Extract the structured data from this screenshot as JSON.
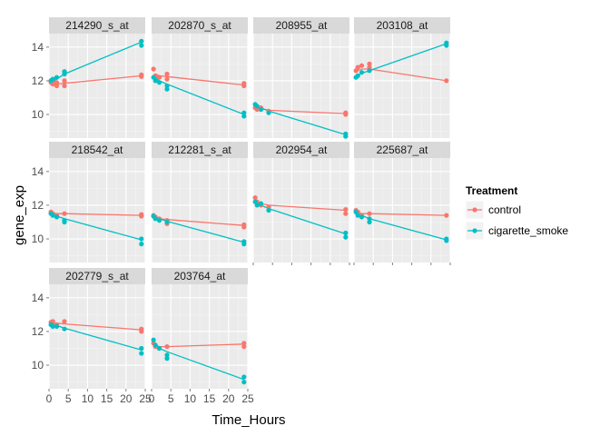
{
  "chart_data": {
    "type": "line",
    "facet_type": "small_multiples",
    "xlabel": "Time_Hours",
    "ylabel": "gene_exp",
    "xlim": [
      0,
      25
    ],
    "ylim": [
      8.6,
      14.8
    ],
    "x_ticks": [
      0,
      5,
      10,
      15,
      20,
      25
    ],
    "y_ticks": [
      10,
      12,
      14
    ],
    "grid": true,
    "legend": {
      "title": "Treatment",
      "position": "right",
      "entries": [
        {
          "name": "control",
          "color": "#F8766D"
        },
        {
          "name": "cigarette_smoke",
          "color": "#00BFC4"
        }
      ]
    },
    "panels": [
      {
        "title": "214290_s_at",
        "lines": {
          "control": [
            [
              1,
              11.9
            ],
            [
              2,
              11.8
            ],
            [
              4,
              11.85
            ],
            [
              24,
              12.3
            ]
          ],
          "cigarette_smoke": [
            [
              1,
              11.95
            ],
            [
              2,
              12.1
            ],
            [
              4,
              12.4
            ],
            [
              24,
              14.3
            ]
          ]
        },
        "points": {
          "control": [
            [
              0.5,
              11.9
            ],
            [
              0.5,
              12.0
            ],
            [
              1,
              11.8
            ],
            [
              1,
              12.0
            ],
            [
              2,
              11.7
            ],
            [
              2,
              11.9
            ],
            [
              4,
              11.7
            ],
            [
              4,
              12.0
            ],
            [
              24,
              12.25
            ],
            [
              24,
              12.35
            ]
          ],
          "cigarette_smoke": [
            [
              0.5,
              12.0
            ],
            [
              1,
              12.1
            ],
            [
              2,
              12.2
            ],
            [
              4,
              12.4
            ],
            [
              4,
              12.55
            ],
            [
              24,
              14.1
            ],
            [
              24,
              14.35
            ]
          ]
        }
      },
      {
        "title": "202870_s_at",
        "lines": {
          "control": [
            [
              1,
              12.4
            ],
            [
              2,
              12.3
            ],
            [
              4,
              12.25
            ],
            [
              24,
              11.75
            ]
          ],
          "cigarette_smoke": [
            [
              1,
              12.2
            ],
            [
              2,
              12.0
            ],
            [
              4,
              11.8
            ],
            [
              24,
              10.0
            ]
          ]
        },
        "points": {
          "control": [
            [
              0.5,
              12.7
            ],
            [
              1,
              12.3
            ],
            [
              2,
              12.2
            ],
            [
              4,
              12.1
            ],
            [
              4,
              12.4
            ],
            [
              24,
              11.7
            ],
            [
              24,
              11.85
            ]
          ],
          "cigarette_smoke": [
            [
              0.5,
              12.2
            ],
            [
              1,
              12.0
            ],
            [
              2,
              11.9
            ],
            [
              4,
              11.5
            ],
            [
              4,
              11.7
            ],
            [
              24,
              9.9
            ],
            [
              24,
              10.1
            ]
          ]
        }
      },
      {
        "title": "208955_at",
        "lines": {
          "control": [
            [
              1,
              10.4
            ],
            [
              2,
              10.35
            ],
            [
              4,
              10.25
            ],
            [
              24,
              10.05
            ]
          ],
          "cigarette_smoke": [
            [
              1,
              10.5
            ],
            [
              2,
              10.4
            ],
            [
              4,
              10.2
            ],
            [
              24,
              8.8
            ]
          ]
        },
        "points": {
          "control": [
            [
              0.5,
              10.4
            ],
            [
              1,
              10.3
            ],
            [
              2,
              10.4
            ],
            [
              4,
              10.2
            ],
            [
              24,
              10.0
            ],
            [
              24,
              10.1
            ]
          ],
          "cigarette_smoke": [
            [
              0.5,
              10.6
            ],
            [
              1,
              10.5
            ],
            [
              2,
              10.3
            ],
            [
              4,
              10.1
            ],
            [
              24,
              8.7
            ],
            [
              24,
              8.85
            ]
          ]
        }
      },
      {
        "title": "203108_at",
        "lines": {
          "control": [
            [
              1,
              12.6
            ],
            [
              2,
              12.7
            ],
            [
              4,
              12.7
            ],
            [
              24,
              12.0
            ]
          ],
          "cigarette_smoke": [
            [
              1,
              12.3
            ],
            [
              2,
              12.45
            ],
            [
              4,
              12.6
            ],
            [
              24,
              14.2
            ]
          ]
        },
        "points": {
          "control": [
            [
              0.5,
              12.6
            ],
            [
              1,
              12.8
            ],
            [
              2,
              12.9
            ],
            [
              4,
              12.8
            ],
            [
              4,
              13.0
            ],
            [
              24,
              12.0
            ]
          ],
          "cigarette_smoke": [
            [
              0.5,
              12.2
            ],
            [
              1,
              12.3
            ],
            [
              2,
              12.5
            ],
            [
              4,
              12.6
            ],
            [
              24,
              14.1
            ],
            [
              24,
              14.25
            ]
          ]
        }
      },
      {
        "title": "218542_at",
        "lines": {
          "control": [
            [
              1,
              11.55
            ],
            [
              2,
              11.5
            ],
            [
              4,
              11.5
            ],
            [
              24,
              11.4
            ]
          ],
          "cigarette_smoke": [
            [
              1,
              11.5
            ],
            [
              2,
              11.35
            ],
            [
              4,
              11.2
            ],
            [
              24,
              9.95
            ]
          ]
        },
        "points": {
          "control": [
            [
              0.5,
              11.6
            ],
            [
              1,
              11.5
            ],
            [
              2,
              11.4
            ],
            [
              4,
              11.5
            ],
            [
              24,
              11.35
            ],
            [
              24,
              11.45
            ]
          ],
          "cigarette_smoke": [
            [
              0.5,
              11.5
            ],
            [
              1,
              11.4
            ],
            [
              2,
              11.3
            ],
            [
              4,
              11.1
            ],
            [
              4,
              11.0
            ],
            [
              24,
              9.7
            ],
            [
              24,
              10.0
            ]
          ]
        }
      },
      {
        "title": "212281_s_at",
        "lines": {
          "control": [
            [
              1,
              11.3
            ],
            [
              2,
              11.2
            ],
            [
              4,
              11.15
            ],
            [
              24,
              10.8
            ]
          ],
          "cigarette_smoke": [
            [
              1,
              11.3
            ],
            [
              2,
              11.2
            ],
            [
              4,
              11.05
            ],
            [
              24,
              9.8
            ]
          ]
        },
        "points": {
          "control": [
            [
              0.5,
              11.4
            ],
            [
              1,
              11.3
            ],
            [
              2,
              11.2
            ],
            [
              4,
              11.1
            ],
            [
              4,
              10.9
            ],
            [
              24,
              10.7
            ],
            [
              24,
              10.85
            ]
          ],
          "cigarette_smoke": [
            [
              0.5,
              11.35
            ],
            [
              1,
              11.2
            ],
            [
              2,
              11.1
            ],
            [
              4,
              11.0
            ],
            [
              24,
              9.7
            ],
            [
              24,
              9.85
            ]
          ]
        }
      },
      {
        "title": "202954_at",
        "lines": {
          "control": [
            [
              1,
              12.2
            ],
            [
              2,
              12.1
            ],
            [
              4,
              12.0
            ],
            [
              24,
              11.7
            ]
          ],
          "cigarette_smoke": [
            [
              1,
              12.1
            ],
            [
              2,
              12.0
            ],
            [
              4,
              11.8
            ],
            [
              24,
              10.3
            ]
          ]
        },
        "points": {
          "control": [
            [
              0.5,
              12.45
            ],
            [
              1,
              12.2
            ],
            [
              2,
              12.0
            ],
            [
              4,
              11.9
            ],
            [
              24,
              11.5
            ],
            [
              24,
              11.75
            ]
          ],
          "cigarette_smoke": [
            [
              0.5,
              12.2
            ],
            [
              1,
              12.0
            ],
            [
              2,
              12.1
            ],
            [
              4,
              11.7
            ],
            [
              24,
              10.1
            ],
            [
              24,
              10.35
            ]
          ]
        }
      },
      {
        "title": "225687_at",
        "lines": {
          "control": [
            [
              1,
              11.6
            ],
            [
              2,
              11.5
            ],
            [
              4,
              11.5
            ],
            [
              24,
              11.4
            ]
          ],
          "cigarette_smoke": [
            [
              1,
              11.5
            ],
            [
              2,
              11.4
            ],
            [
              4,
              11.2
            ],
            [
              24,
              9.95
            ]
          ]
        },
        "points": {
          "control": [
            [
              0.5,
              11.7
            ],
            [
              1,
              11.6
            ],
            [
              2,
              11.4
            ],
            [
              4,
              11.5
            ],
            [
              24,
              11.4
            ]
          ],
          "cigarette_smoke": [
            [
              0.5,
              11.6
            ],
            [
              1,
              11.4
            ],
            [
              2,
              11.3
            ],
            [
              4,
              11.0
            ],
            [
              4,
              11.2
            ],
            [
              24,
              9.9
            ],
            [
              24,
              10.0
            ]
          ]
        }
      },
      {
        "title": "202779_s_at",
        "lines": {
          "control": [
            [
              1,
              12.5
            ],
            [
              2,
              12.5
            ],
            [
              4,
              12.45
            ],
            [
              24,
              12.1
            ]
          ],
          "cigarette_smoke": [
            [
              1,
              12.45
            ],
            [
              2,
              12.35
            ],
            [
              4,
              12.2
            ],
            [
              24,
              10.9
            ]
          ]
        },
        "points": {
          "control": [
            [
              0.5,
              12.55
            ],
            [
              1,
              12.6
            ],
            [
              2,
              12.4
            ],
            [
              4,
              12.6
            ],
            [
              24,
              12.0
            ],
            [
              24,
              12.15
            ]
          ],
          "cigarette_smoke": [
            [
              0.5,
              12.4
            ],
            [
              1,
              12.3
            ],
            [
              2,
              12.3
            ],
            [
              4,
              12.15
            ],
            [
              24,
              10.7
            ],
            [
              24,
              11.0
            ]
          ]
        }
      },
      {
        "title": "203764_at",
        "lines": {
          "control": [
            [
              1,
              11.2
            ],
            [
              2,
              11.1
            ],
            [
              4,
              11.1
            ],
            [
              24,
              11.25
            ]
          ],
          "cigarette_smoke": [
            [
              1,
              11.3
            ],
            [
              2,
              11.0
            ],
            [
              4,
              10.8
            ],
            [
              24,
              9.15
            ]
          ]
        },
        "points": {
          "control": [
            [
              0.5,
              11.3
            ],
            [
              1,
              11.1
            ],
            [
              2,
              11.0
            ],
            [
              4,
              11.1
            ],
            [
              24,
              11.1
            ],
            [
              24,
              11.3
            ]
          ],
          "cigarette_smoke": [
            [
              0.5,
              11.5
            ],
            [
              1,
              11.2
            ],
            [
              2,
              11.0
            ],
            [
              4,
              10.6
            ],
            [
              4,
              10.4
            ],
            [
              24,
              9.0
            ],
            [
              24,
              9.3
            ]
          ]
        }
      }
    ]
  }
}
